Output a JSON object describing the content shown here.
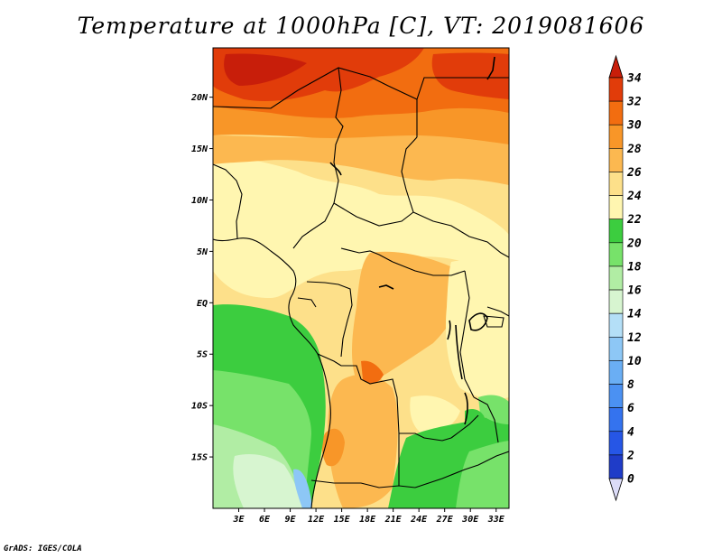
{
  "title": "Temperature at 1000hPa [C], VT: 2019081606",
  "credit": "GrADS: IGES/COLA",
  "lat_ticks": [
    {
      "label": "20N",
      "value": 20
    },
    {
      "label": "15N",
      "value": 15
    },
    {
      "label": "10N",
      "value": 10
    },
    {
      "label": "5N",
      "value": 5
    },
    {
      "label": "EQ",
      "value": 0
    },
    {
      "label": "5S",
      "value": -5
    },
    {
      "label": "10S",
      "value": -10
    },
    {
      "label": "15S",
      "value": -15
    }
  ],
  "lon_ticks": [
    {
      "label": "3E",
      "value": 3
    },
    {
      "label": "6E",
      "value": 6
    },
    {
      "label": "9E",
      "value": 9
    },
    {
      "label": "12E",
      "value": 12
    },
    {
      "label": "15E",
      "value": 15
    },
    {
      "label": "18E",
      "value": 18
    },
    {
      "label": "21E",
      "value": 21
    },
    {
      "label": "24E",
      "value": 24
    },
    {
      "label": "27E",
      "value": 27
    },
    {
      "label": "30E",
      "value": 30
    },
    {
      "label": "33E",
      "value": 33
    }
  ],
  "extent": {
    "lon_min": 0,
    "lon_max": 34.5,
    "lat_min": -20,
    "lat_max": 24.8
  },
  "colorbar": {
    "levels": [
      {
        "label": "0",
        "color": "#1e1e8c"
      },
      {
        "label": "2",
        "color": "#1f3cc8"
      },
      {
        "label": "4",
        "color": "#2656e6"
      },
      {
        "label": "6",
        "color": "#3473ef"
      },
      {
        "label": "8",
        "color": "#4b91f2"
      },
      {
        "label": "10",
        "color": "#6aaef4"
      },
      {
        "label": "12",
        "color": "#8dc7f6"
      },
      {
        "label": "14",
        "color": "#b4dff7"
      },
      {
        "label": "16",
        "color": "#d7f5d0"
      },
      {
        "label": "18",
        "color": "#b1eda4"
      },
      {
        "label": "20",
        "color": "#77e26a"
      },
      {
        "label": "22",
        "color": "#3ccd3f"
      },
      {
        "label": "24",
        "color": "#fff6b0"
      },
      {
        "label": "26",
        "color": "#fde08a"
      },
      {
        "label": "28",
        "color": "#fcb850"
      },
      {
        "label": "30",
        "color": "#f89628"
      },
      {
        "label": "32",
        "color": "#f26d10"
      },
      {
        "label": "34",
        "color": "#e13c0a"
      }
    ],
    "under_color": "#dcdcf8",
    "over_color": "#c81e0a"
  }
}
